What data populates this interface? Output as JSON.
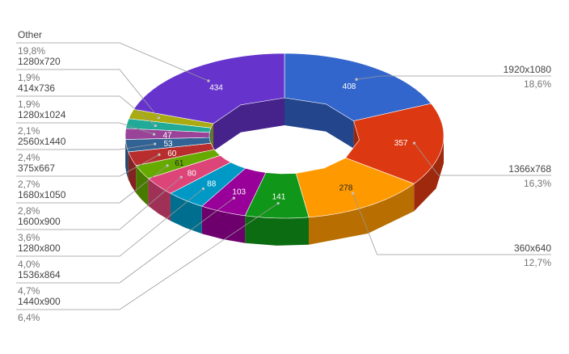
{
  "chart_data": {
    "type": "pie",
    "title": "",
    "legend": "none",
    "slices": [
      {
        "label": "1920x1080",
        "value": 408,
        "percent": "18,6%",
        "color": "#3366cc"
      },
      {
        "label": "1366x768",
        "value": 357,
        "percent": "16,3%",
        "color": "#dc3912"
      },
      {
        "label": "360x640",
        "value": 278,
        "percent": "12,7%",
        "color": "#ff9900"
      },
      {
        "label": "1440x900",
        "value": 141,
        "percent": "6,4%",
        "color": "#109618"
      },
      {
        "label": "1536x864",
        "value": 103,
        "percent": "4,7%",
        "color": "#990099"
      },
      {
        "label": "1280x800",
        "value": 88,
        "percent": "4,0%",
        "color": "#0099c6"
      },
      {
        "label": "1600x900",
        "value": 80,
        "percent": "3,6%",
        "color": "#dd4477"
      },
      {
        "label": "1680x1050",
        "value": 61,
        "percent": "2,8%",
        "color": "#66aa00"
      },
      {
        "label": "375x667",
        "value": 60,
        "percent": "2,7%",
        "color": "#b82e2e"
      },
      {
        "label": "2560x1440",
        "value": 53,
        "percent": "2,4%",
        "color": "#316395"
      },
      {
        "label": "1280x1024",
        "value": 47,
        "percent": "2,1%",
        "color": "#994499"
      },
      {
        "label": "414x736",
        "value": 42,
        "percent": "1,9%",
        "color": "#22aa99"
      },
      {
        "label": "1280x720",
        "value": 41,
        "percent": "1,9%",
        "color": "#aaaa11"
      },
      {
        "label": "Other",
        "value": 434,
        "percent": "19,8%",
        "color": "#6633cc"
      }
    ]
  }
}
